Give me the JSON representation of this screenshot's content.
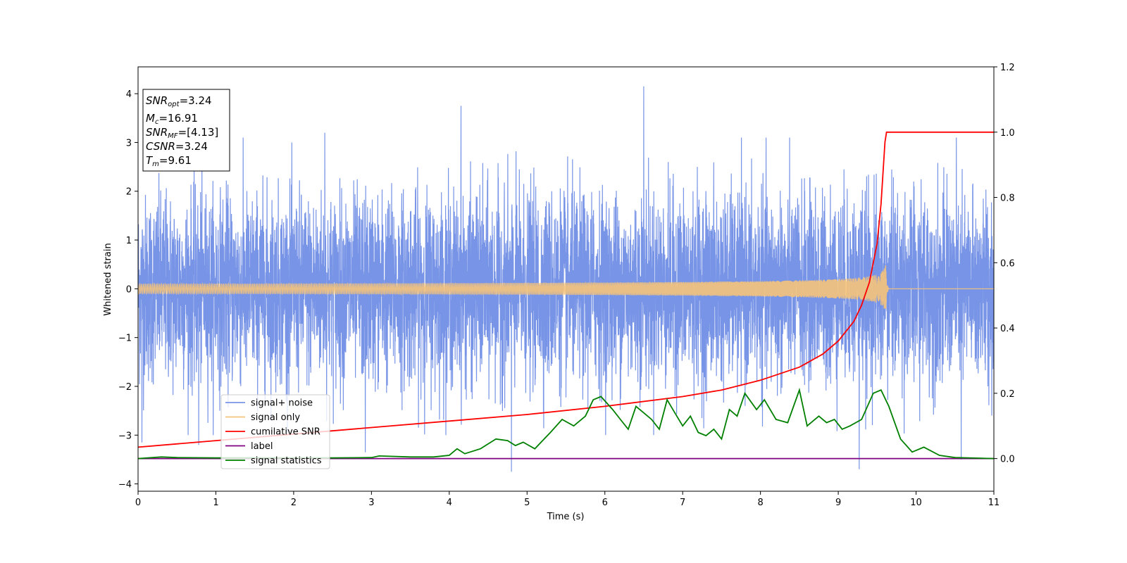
{
  "chart_data": {
    "type": "line",
    "xlabel": "Time (s)",
    "ylabel": "Whitened strain",
    "xlim": [
      0,
      11
    ],
    "ylim": [
      -4.15,
      4.55
    ],
    "y2lim": [
      -0.1,
      1.2
    ],
    "xticks": [
      0,
      1,
      2,
      3,
      4,
      5,
      6,
      7,
      8,
      9,
      10,
      11
    ],
    "yticks": [
      -4,
      -3,
      -2,
      -1,
      0,
      1,
      2,
      3,
      4
    ],
    "y2ticks": [
      0.0,
      0.2,
      0.4,
      0.6,
      0.8,
      1.0,
      1.2
    ],
    "xtick_labels": [
      "0",
      "1",
      "2",
      "3",
      "4",
      "5",
      "6",
      "7",
      "8",
      "9",
      "10",
      "11"
    ],
    "ytick_labels": [
      "−4",
      "−3",
      "−2",
      "−1",
      "0",
      "1",
      "2",
      "3",
      "4"
    ],
    "y2tick_labels": [
      "0.0",
      "0.2",
      "0.4",
      "0.6",
      "0.8",
      "1.0",
      "1.2"
    ],
    "grid": false,
    "legend_position": "lower-left",
    "legend": [
      {
        "label": "signal+ noise",
        "color": "#7894e6"
      },
      {
        "label": "signal only",
        "color": "#f5c37a"
      },
      {
        "label": "cumilative SNR",
        "color": "#ff0000"
      },
      {
        "label": "label",
        "color": "#800080"
      },
      {
        "label": "signal statistics",
        "color": "#008000"
      }
    ],
    "annotation": {
      "snr_opt": {
        "sym": "SNR",
        "sub": "opt",
        "value": "=3.24"
      },
      "mc": {
        "sym": "M",
        "sub": "c",
        "value": "=16.91"
      },
      "snr_mf": {
        "sym": "SNR",
        "sub": "MF",
        "value": "=[4.13]"
      },
      "csnr": {
        "sym": "CSNR",
        "value": "=3.24"
      },
      "tm": {
        "sym": "T",
        "sub": "m",
        "value": "=9.61"
      }
    },
    "series": [
      {
        "name": "signal+ noise",
        "color": "#7894e6",
        "axis": "left",
        "kind": "noise",
        "duration": 11,
        "envelope_typical": [
          -1.9,
          2.1
        ],
        "peaks": [
          [
            4.15,
            3.75
          ],
          [
            6.5,
            4.15
          ],
          [
            2.4,
            3.2
          ],
          [
            4.8,
            -3.75
          ],
          [
            9.27,
            -3.7
          ],
          [
            10.58,
            -3.5
          ],
          [
            0.05,
            -3.15
          ],
          [
            2.92,
            -3.35
          ],
          [
            0.78,
            -3.2
          ]
        ]
      },
      {
        "name": "signal only",
        "color": "#f5c37a",
        "axis": "left",
        "kind": "chirp",
        "t_merger": 9.61,
        "peak_amplitude": 0.5
      },
      {
        "name": "cumilative SNR",
        "color": "#ff0000",
        "axis": "right",
        "x": [
          0,
          1,
          2,
          3,
          4,
          5,
          6,
          7,
          7.5,
          8,
          8.5,
          8.8,
          9.0,
          9.2,
          9.3,
          9.4,
          9.5,
          9.55,
          9.6,
          9.62,
          11
        ],
        "y": [
          0.035,
          0.055,
          0.075,
          0.095,
          0.115,
          0.135,
          0.16,
          0.19,
          0.21,
          0.24,
          0.28,
          0.32,
          0.36,
          0.42,
          0.47,
          0.54,
          0.66,
          0.78,
          0.97,
          1.0,
          1.0
        ]
      },
      {
        "name": "label",
        "color": "#800080",
        "axis": "right",
        "x": [
          0,
          11
        ],
        "y": [
          0.0,
          0.0
        ]
      },
      {
        "name": "signal statistics",
        "color": "#008000",
        "axis": "right",
        "x": [
          0,
          0.3,
          0.5,
          1.0,
          1.5,
          2.0,
          2.5,
          3.0,
          3.1,
          3.5,
          3.8,
          4.0,
          4.1,
          4.2,
          4.4,
          4.6,
          4.75,
          4.85,
          4.95,
          5.1,
          5.3,
          5.45,
          5.6,
          5.75,
          5.85,
          5.95,
          6.1,
          6.2,
          6.3,
          6.4,
          6.5,
          6.6,
          6.7,
          6.8,
          6.9,
          7.0,
          7.1,
          7.2,
          7.3,
          7.4,
          7.5,
          7.6,
          7.7,
          7.8,
          7.95,
          8.05,
          8.2,
          8.35,
          8.5,
          8.6,
          8.75,
          8.85,
          8.95,
          9.05,
          9.15,
          9.3,
          9.45,
          9.55,
          9.65,
          9.8,
          9.95,
          10.1,
          10.3,
          10.5,
          11.0
        ],
        "y": [
          0.0,
          0.005,
          0.003,
          0.002,
          0.002,
          0.002,
          0.002,
          0.003,
          0.008,
          0.005,
          0.005,
          0.01,
          0.03,
          0.015,
          0.03,
          0.06,
          0.055,
          0.04,
          0.05,
          0.03,
          0.08,
          0.12,
          0.1,
          0.13,
          0.18,
          0.19,
          0.15,
          0.12,
          0.09,
          0.16,
          0.14,
          0.12,
          0.09,
          0.18,
          0.14,
          0.1,
          0.13,
          0.08,
          0.07,
          0.09,
          0.06,
          0.15,
          0.13,
          0.2,
          0.15,
          0.18,
          0.12,
          0.11,
          0.21,
          0.1,
          0.13,
          0.11,
          0.12,
          0.09,
          0.1,
          0.12,
          0.2,
          0.21,
          0.16,
          0.06,
          0.02,
          0.035,
          0.01,
          0.003,
          0.0
        ]
      }
    ]
  }
}
